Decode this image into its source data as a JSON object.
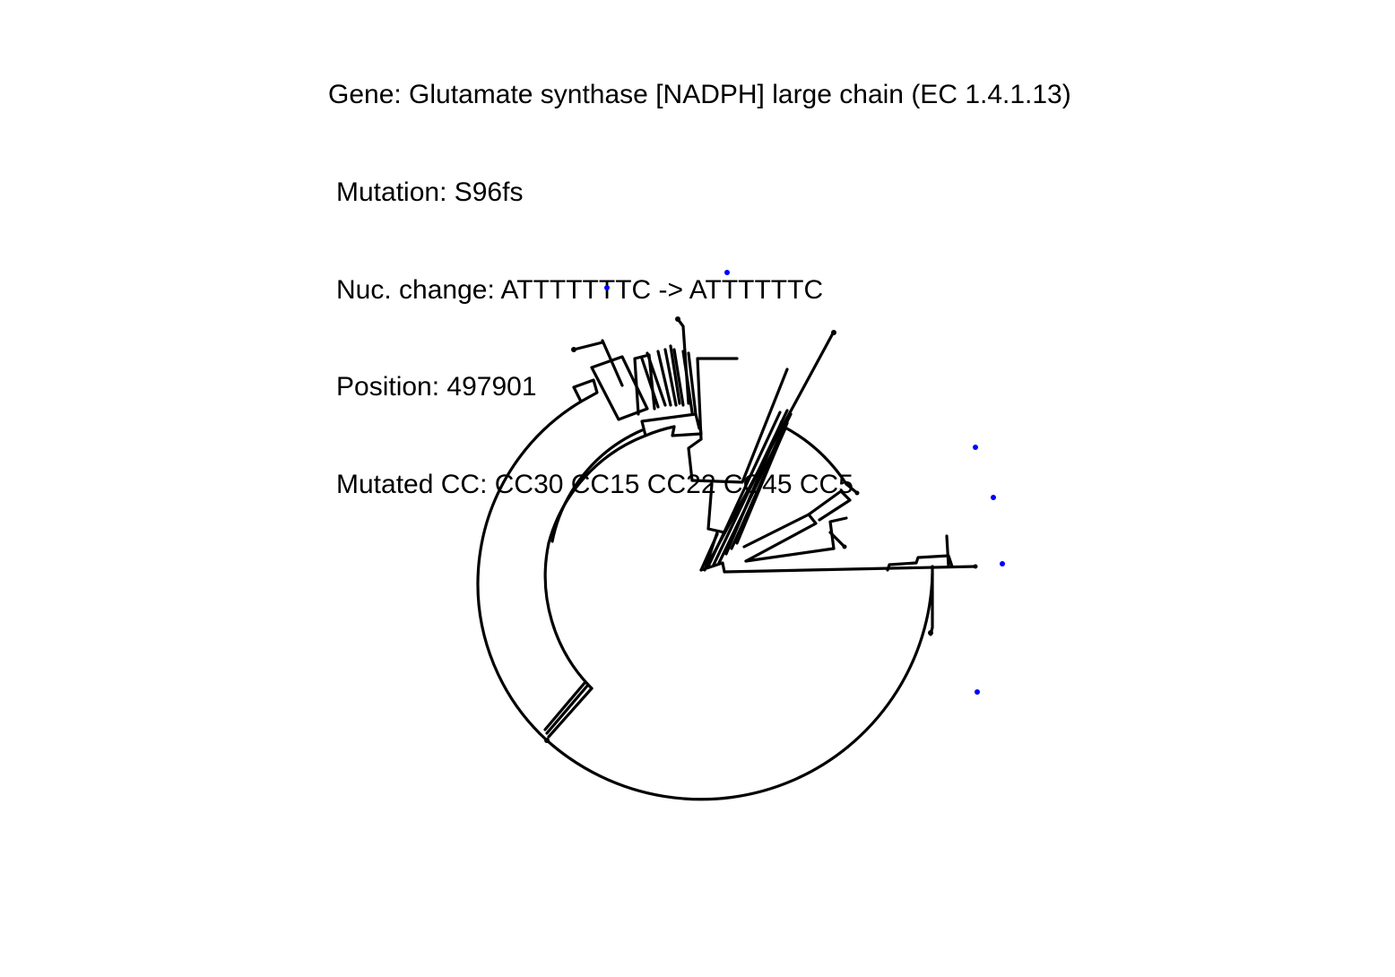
{
  "title": {
    "gene": "Gene: Glutamate synthase [NADPH] large chain (EC 1.4.1.13)",
    "mutation": "Mutation: S96fs",
    "nuc_change": "Nuc. change: ATTTTTTTC -> ATTTTTTC",
    "position": "Position: 497901",
    "mutated_cc": "Mutated CC: CC30 CC15 CC22 CC45 CC5"
  },
  "colors": {
    "tree": "#000000",
    "mutation_marker": "#0000ff",
    "background": "#ffffff"
  },
  "tree": {
    "layout": "circular-phylogeny",
    "marked_tips": 6
  }
}
